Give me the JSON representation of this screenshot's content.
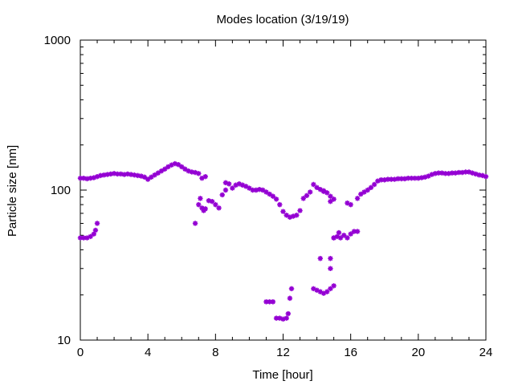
{
  "chart_data": {
    "type": "scatter",
    "title": "Modes location (3/19/19)",
    "xlabel": "Time [hour]",
    "ylabel": "Particle size [nm]",
    "xlim": [
      0,
      24
    ],
    "ylim": [
      10,
      1000
    ],
    "yscale": "log",
    "xticks": [
      0,
      4,
      8,
      12,
      16,
      20,
      24
    ],
    "yticks": [
      10,
      100,
      1000
    ],
    "ytick_labels": [
      "10",
      "100",
      "1000"
    ],
    "grid": false,
    "legend": "none",
    "marker_color": "#9400D3",
    "series": [
      {
        "points": [
          [
            0.0,
            120
          ],
          [
            0.2,
            120
          ],
          [
            0.4,
            119
          ],
          [
            0.6,
            120
          ],
          [
            0.8,
            121
          ],
          [
            1.0,
            123
          ],
          [
            1.2,
            125
          ],
          [
            1.4,
            126
          ],
          [
            1.6,
            127
          ],
          [
            1.8,
            128
          ],
          [
            2.0,
            129
          ],
          [
            2.2,
            128
          ],
          [
            2.4,
            128
          ],
          [
            2.6,
            127
          ],
          [
            2.8,
            128
          ],
          [
            3.0,
            127
          ],
          [
            3.2,
            126
          ],
          [
            3.4,
            125
          ],
          [
            3.6,
            124
          ],
          [
            3.8,
            122
          ],
          [
            4.0,
            118
          ],
          [
            4.2,
            122
          ],
          [
            4.4,
            126
          ],
          [
            4.6,
            130
          ],
          [
            4.8,
            134
          ],
          [
            5.0,
            138
          ],
          [
            5.2,
            143
          ],
          [
            5.4,
            147
          ],
          [
            5.6,
            150
          ],
          [
            5.8,
            148
          ],
          [
            6.0,
            143
          ],
          [
            6.2,
            138
          ],
          [
            6.4,
            134
          ],
          [
            6.6,
            132
          ],
          [
            6.8,
            131
          ],
          [
            7.0,
            129
          ],
          [
            7.2,
            120
          ],
          [
            7.4,
            123
          ],
          [
            8.6,
            112
          ],
          [
            8.8,
            110
          ],
          [
            9.0,
            103
          ],
          [
            9.2,
            108
          ],
          [
            9.4,
            110
          ],
          [
            9.6,
            108
          ],
          [
            9.8,
            106
          ],
          [
            10.0,
            103
          ],
          [
            10.2,
            100
          ],
          [
            10.4,
            100
          ],
          [
            10.6,
            101
          ],
          [
            10.8,
            100
          ],
          [
            11.0,
            97
          ],
          [
            11.2,
            94
          ],
          [
            11.4,
            91
          ],
          [
            11.6,
            87
          ],
          [
            11.8,
            80
          ],
          [
            12.0,
            72
          ],
          [
            12.2,
            68
          ],
          [
            12.4,
            66
          ],
          [
            12.6,
            67
          ],
          [
            12.8,
            68
          ],
          [
            13.0,
            73
          ],
          [
            13.2,
            88
          ],
          [
            13.4,
            92
          ],
          [
            13.6,
            97
          ],
          [
            13.8,
            109
          ],
          [
            14.0,
            104
          ],
          [
            14.2,
            101
          ],
          [
            14.4,
            99
          ],
          [
            14.6,
            96
          ],
          [
            14.8,
            91
          ],
          [
            15.0,
            87
          ],
          [
            16.4,
            88
          ],
          [
            16.6,
            94
          ],
          [
            16.8,
            97
          ],
          [
            17.0,
            100
          ],
          [
            17.2,
            104
          ],
          [
            17.4,
            109
          ],
          [
            17.6,
            115
          ],
          [
            17.8,
            117
          ],
          [
            18.0,
            117
          ],
          [
            18.2,
            118
          ],
          [
            18.4,
            118
          ],
          [
            18.6,
            118
          ],
          [
            18.8,
            119
          ],
          [
            19.0,
            119
          ],
          [
            19.2,
            119
          ],
          [
            19.4,
            120
          ],
          [
            19.6,
            120
          ],
          [
            19.8,
            120
          ],
          [
            20.0,
            120
          ],
          [
            20.2,
            121
          ],
          [
            20.4,
            122
          ],
          [
            20.6,
            124
          ],
          [
            20.8,
            127
          ],
          [
            21.0,
            129
          ],
          [
            21.2,
            130
          ],
          [
            21.4,
            130
          ],
          [
            21.6,
            129
          ],
          [
            21.8,
            129
          ],
          [
            22.0,
            130
          ],
          [
            22.2,
            130
          ],
          [
            22.4,
            131
          ],
          [
            22.6,
            131
          ],
          [
            22.8,
            132
          ],
          [
            23.0,
            132
          ],
          [
            23.2,
            130
          ],
          [
            23.4,
            128
          ],
          [
            23.6,
            126
          ],
          [
            23.8,
            125
          ],
          [
            24.0,
            123
          ],
          [
            0.0,
            48
          ],
          [
            0.2,
            48
          ],
          [
            0.4,
            48
          ],
          [
            0.6,
            49
          ],
          [
            0.8,
            51
          ],
          [
            0.9,
            54
          ],
          [
            1.0,
            60
          ],
          [
            6.8,
            60
          ],
          [
            7.0,
            80
          ],
          [
            7.1,
            88
          ],
          [
            7.2,
            76
          ],
          [
            7.3,
            73
          ],
          [
            7.4,
            75
          ],
          [
            7.6,
            85
          ],
          [
            7.8,
            84
          ],
          [
            8.0,
            80
          ],
          [
            8.2,
            76
          ],
          [
            8.4,
            93
          ],
          [
            8.6,
            100
          ],
          [
            11.0,
            18
          ],
          [
            11.2,
            18
          ],
          [
            11.4,
            18
          ],
          [
            11.6,
            14
          ],
          [
            11.8,
            14
          ],
          [
            12.0,
            13.8
          ],
          [
            12.2,
            14
          ],
          [
            12.3,
            15
          ],
          [
            12.4,
            19
          ],
          [
            12.5,
            22
          ],
          [
            13.8,
            22
          ],
          [
            14.0,
            21.5
          ],
          [
            14.2,
            21
          ],
          [
            14.4,
            20.5
          ],
          [
            14.6,
            21
          ],
          [
            14.8,
            22
          ],
          [
            15.0,
            23
          ],
          [
            14.2,
            35
          ],
          [
            14.8,
            35
          ],
          [
            14.8,
            30
          ],
          [
            15.0,
            48
          ],
          [
            15.2,
            49
          ],
          [
            15.4,
            48
          ],
          [
            15.6,
            50
          ],
          [
            15.8,
            48
          ],
          [
            16.0,
            51
          ],
          [
            16.2,
            53
          ],
          [
            16.4,
            53
          ],
          [
            15.8,
            82
          ],
          [
            16.0,
            80
          ],
          [
            14.4,
            98
          ],
          [
            14.8,
            84
          ],
          [
            15.0,
            48
          ],
          [
            15.3,
            52
          ]
        ]
      }
    ]
  }
}
